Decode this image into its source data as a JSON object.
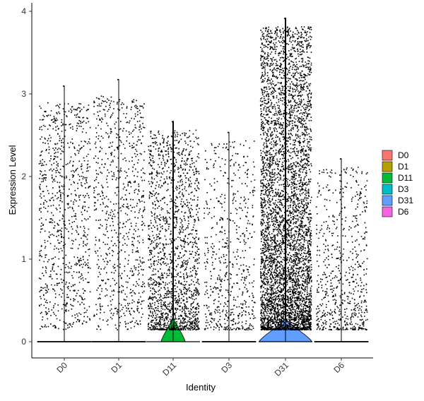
{
  "chart_data": {
    "type": "violin",
    "xlabel": "Identity",
    "ylabel": "Expression Level",
    "categories": [
      "D0",
      "D1",
      "D11",
      "D3",
      "D31",
      "D6"
    ],
    "ylim": [
      -0.2,
      4.05
    ],
    "yticks": [
      0,
      1,
      2,
      3,
      4
    ],
    "legend_position": "right",
    "grid": false,
    "series": [
      {
        "name": "D0",
        "color": "#F8766D",
        "max": 3.1,
        "n_points": 900,
        "spread": "uniform",
        "violin_width": 0.0
      },
      {
        "name": "D1",
        "color": "#B79F00",
        "max": 3.18,
        "n_points": 800,
        "spread": "uniform",
        "violin_width": 0.0
      },
      {
        "name": "D11",
        "color": "#00BA38",
        "max": 2.67,
        "n_points": 1700,
        "spread": "low-heavy",
        "violin_width": 0.45
      },
      {
        "name": "D3",
        "color": "#00BFC4",
        "max": 2.54,
        "n_points": 600,
        "spread": "low-heavy",
        "violin_width": 0.0
      },
      {
        "name": "D31",
        "color": "#619CFF",
        "max": 3.92,
        "n_points": 5000,
        "spread": "low-heavy",
        "violin_width": 0.98
      },
      {
        "name": "D6",
        "color": "#F564E3",
        "max": 2.22,
        "n_points": 650,
        "spread": "low-heavy",
        "violin_width": 0.0
      }
    ]
  }
}
